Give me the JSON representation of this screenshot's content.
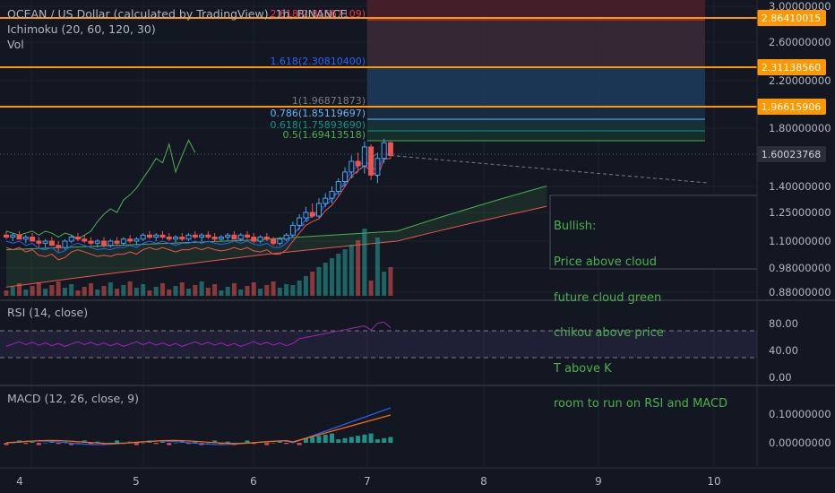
{
  "header": {
    "symbol": "OCEAN / US Dollar (calculated by TradingView), 1h, BINANCE",
    "ichimoku": "Ichimoku (20, 60, 120, 30)",
    "vol": "Vol"
  },
  "rsi_label": "RSI (14, close)",
  "macd_label": "MACD (12, 26, close, 9)",
  "fib_levels": [
    {
      "label": "1.618(2.30810400)",
      "color": "#2962ff"
    },
    {
      "label": "1(1.96871873)",
      "color": "#787b86"
    },
    {
      "label": "0.786(1.85119697)",
      "color": "#64b5f6"
    },
    {
      "label": "0.618(1.75893690)",
      "color": "#089981"
    },
    {
      "label": "0.5(1.69413518)",
      "color": "#4caf50"
    },
    {
      "label": "2.618(2.85667109)",
      "color": "#f23645"
    }
  ],
  "price_axis": {
    "ticks": [
      "3.00000000",
      "2.60000000",
      "2.20000000",
      "1.80000000",
      "1.40000000",
      "1.25000000",
      "1.10000000",
      "0.98000000",
      "0.88000000"
    ],
    "horizontal_line_labels": [
      "2.86410015",
      "2.31138560",
      "1.96615906"
    ],
    "current_price": "1.60023768"
  },
  "rsi_axis": [
    "80.00",
    "40.00",
    "0.00"
  ],
  "macd_axis": [
    "0.10000000",
    "0.00000000"
  ],
  "time_axis": [
    "4",
    "5",
    "6",
    "7",
    "8",
    "9",
    "10"
  ],
  "annotation": {
    "lines": [
      "Bullish:",
      "Price above cloud",
      "future cloud green",
      "chikou above price",
      "T above K",
      "room to run on RSI and MACD"
    ]
  },
  "colors": {
    "background": "#131722",
    "up": "#42a5f5",
    "down": "#ef5350",
    "hline": "#ff9800",
    "cloud": "#4caf50",
    "rsi": "#9c27b0"
  },
  "chart_data": {
    "type": "candlestick",
    "symbol": "OCEANUSD",
    "interval": "1h",
    "ohlc": [
      [
        1.13,
        1.15,
        1.11,
        1.12
      ],
      [
        1.12,
        1.14,
        1.1,
        1.13
      ],
      [
        1.13,
        1.15,
        1.11,
        1.11
      ],
      [
        1.11,
        1.13,
        1.09,
        1.12
      ],
      [
        1.12,
        1.14,
        1.1,
        1.1
      ],
      [
        1.1,
        1.12,
        1.07,
        1.09
      ],
      [
        1.09,
        1.11,
        1.07,
        1.1
      ],
      [
        1.1,
        1.12,
        1.08,
        1.08
      ],
      [
        1.08,
        1.1,
        1.05,
        1.07
      ],
      [
        1.07,
        1.11,
        1.06,
        1.1
      ],
      [
        1.1,
        1.13,
        1.09,
        1.12
      ],
      [
        1.12,
        1.14,
        1.1,
        1.11
      ],
      [
        1.11,
        1.13,
        1.09,
        1.1
      ],
      [
        1.1,
        1.12,
        1.08,
        1.09
      ],
      [
        1.09,
        1.11,
        1.07,
        1.1
      ],
      [
        1.1,
        1.12,
        1.07,
        1.08
      ],
      [
        1.08,
        1.11,
        1.07,
        1.1
      ],
      [
        1.1,
        1.12,
        1.08,
        1.09
      ],
      [
        1.09,
        1.12,
        1.08,
        1.11
      ],
      [
        1.11,
        1.13,
        1.09,
        1.1
      ],
      [
        1.1,
        1.12,
        1.08,
        1.11
      ],
      [
        1.11,
        1.14,
        1.1,
        1.13
      ],
      [
        1.13,
        1.15,
        1.11,
        1.12
      ],
      [
        1.12,
        1.14,
        1.1,
        1.13
      ],
      [
        1.13,
        1.15,
        1.11,
        1.12
      ],
      [
        1.12,
        1.14,
        1.1,
        1.11
      ],
      [
        1.11,
        1.13,
        1.09,
        1.12
      ],
      [
        1.12,
        1.14,
        1.1,
        1.11
      ],
      [
        1.11,
        1.14,
        1.1,
        1.13
      ],
      [
        1.13,
        1.15,
        1.11,
        1.12
      ],
      [
        1.12,
        1.14,
        1.1,
        1.13
      ],
      [
        1.13,
        1.15,
        1.11,
        1.12
      ],
      [
        1.12,
        1.14,
        1.1,
        1.11
      ],
      [
        1.11,
        1.13,
        1.1,
        1.12
      ],
      [
        1.12,
        1.14,
        1.1,
        1.13
      ],
      [
        1.13,
        1.15,
        1.11,
        1.11
      ],
      [
        1.11,
        1.14,
        1.1,
        1.13
      ],
      [
        1.13,
        1.15,
        1.11,
        1.12
      ],
      [
        1.12,
        1.14,
        1.09,
        1.1
      ],
      [
        1.1,
        1.13,
        1.09,
        1.12
      ],
      [
        1.12,
        1.14,
        1.1,
        1.11
      ],
      [
        1.11,
        1.12,
        1.08,
        1.09
      ],
      [
        1.09,
        1.12,
        1.08,
        1.11
      ],
      [
        1.11,
        1.14,
        1.1,
        1.13
      ],
      [
        1.13,
        1.2,
        1.12,
        1.18
      ],
      [
        1.18,
        1.24,
        1.16,
        1.22
      ],
      [
        1.22,
        1.28,
        1.2,
        1.25
      ],
      [
        1.25,
        1.3,
        1.22,
        1.23
      ],
      [
        1.23,
        1.33,
        1.22,
        1.3
      ],
      [
        1.3,
        1.36,
        1.28,
        1.33
      ],
      [
        1.33,
        1.4,
        1.3,
        1.37
      ],
      [
        1.37,
        1.45,
        1.35,
        1.43
      ],
      [
        1.43,
        1.52,
        1.4,
        1.49
      ],
      [
        1.49,
        1.6,
        1.45,
        1.56
      ],
      [
        1.56,
        1.62,
        1.5,
        1.53
      ],
      [
        1.53,
        1.7,
        1.48,
        1.66
      ],
      [
        1.66,
        1.68,
        1.44,
        1.47
      ],
      [
        1.47,
        1.62,
        1.42,
        1.58
      ],
      [
        1.58,
        1.72,
        1.55,
        1.69
      ],
      [
        1.69,
        1.7,
        1.58,
        1.6
      ]
    ],
    "horizontal_lines": [
      2.86410015,
      2.3113856,
      1.96615906
    ],
    "fibonacci": [
      {
        "ratio": 2.618,
        "price": 2.85667109
      },
      {
        "ratio": 1.618,
        "price": 2.308104
      },
      {
        "ratio": 1,
        "price": 1.96871873
      },
      {
        "ratio": 0.786,
        "price": 1.85119697
      },
      {
        "ratio": 0.618,
        "price": 1.7589369
      },
      {
        "ratio": 0.5,
        "price": 1.69413518
      }
    ],
    "rsi_levels": [
      70,
      30
    ],
    "xlabels": [
      "4",
      "5",
      "6",
      "7",
      "8",
      "9",
      "10"
    ]
  }
}
